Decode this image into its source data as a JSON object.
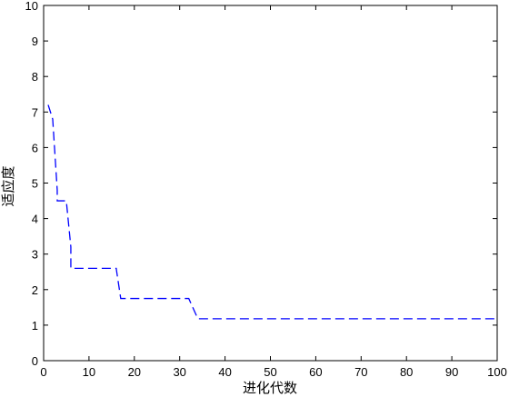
{
  "chart_data": {
    "type": "line",
    "title": "",
    "xlabel": "进化代数",
    "ylabel": "适应度",
    "xlim": [
      0,
      100
    ],
    "ylim": [
      0,
      10
    ],
    "grid": false,
    "x_ticks": [
      "0",
      "10",
      "20",
      "30",
      "40",
      "50",
      "60",
      "70",
      "80",
      "90",
      "100"
    ],
    "y_ticks": [
      "0",
      "1",
      "2",
      "3",
      "4",
      "5",
      "6",
      "7",
      "8",
      "9",
      "10"
    ],
    "series": [
      {
        "name": "",
        "color": "#0000ff",
        "style": "dashed",
        "x": [
          1,
          2,
          3,
          3,
          5,
          6,
          6,
          16,
          17,
          17,
          32,
          34,
          34,
          100
        ],
        "y": [
          7.2,
          6.8,
          4.8,
          4.5,
          4.5,
          3.2,
          2.6,
          2.6,
          1.75,
          1.75,
          1.75,
          1.18,
          1.18,
          1.18
        ]
      }
    ]
  }
}
